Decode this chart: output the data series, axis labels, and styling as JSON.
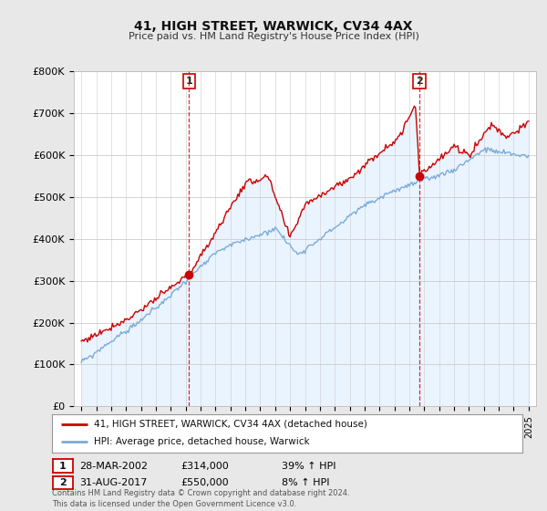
{
  "title": "41, HIGH STREET, WARWICK, CV34 4AX",
  "subtitle": "Price paid vs. HM Land Registry's House Price Index (HPI)",
  "ylim": [
    0,
    800000
  ],
  "yticks": [
    0,
    100000,
    200000,
    300000,
    400000,
    500000,
    600000,
    700000,
    800000
  ],
  "ytick_labels": [
    "£0",
    "£100K",
    "£200K",
    "£300K",
    "£400K",
    "£500K",
    "£600K",
    "£700K",
    "£800K"
  ],
  "background_color": "#e8e8e8",
  "plot_background": "#ffffff",
  "plot_fill_color": "#ddeeff",
  "grid_color": "#cccccc",
  "hpi_color": "#7aabda",
  "price_color": "#cc0000",
  "vline_color": "#cc0000",
  "marker1_x": 2002.22,
  "marker1_y": 314000,
  "marker2_x": 2017.67,
  "marker2_y": 550000,
  "legend_label1": "41, HIGH STREET, WARWICK, CV34 4AX (detached house)",
  "legend_label2": "HPI: Average price, detached house, Warwick",
  "annotation1_date": "28-MAR-2002",
  "annotation1_price": "£314,000",
  "annotation1_pct": "39% ↑ HPI",
  "annotation2_date": "31-AUG-2017",
  "annotation2_price": "£550,000",
  "annotation2_pct": "8% ↑ HPI",
  "footer": "Contains HM Land Registry data © Crown copyright and database right 2024.\nThis data is licensed under the Open Government Licence v3.0.",
  "xlim_start": 1994.5,
  "xlim_end": 2025.5,
  "xticks": [
    1995,
    1996,
    1997,
    1998,
    1999,
    2000,
    2001,
    2002,
    2003,
    2004,
    2005,
    2006,
    2007,
    2008,
    2009,
    2010,
    2011,
    2012,
    2013,
    2014,
    2015,
    2016,
    2017,
    2018,
    2019,
    2020,
    2021,
    2022,
    2023,
    2024,
    2025
  ]
}
